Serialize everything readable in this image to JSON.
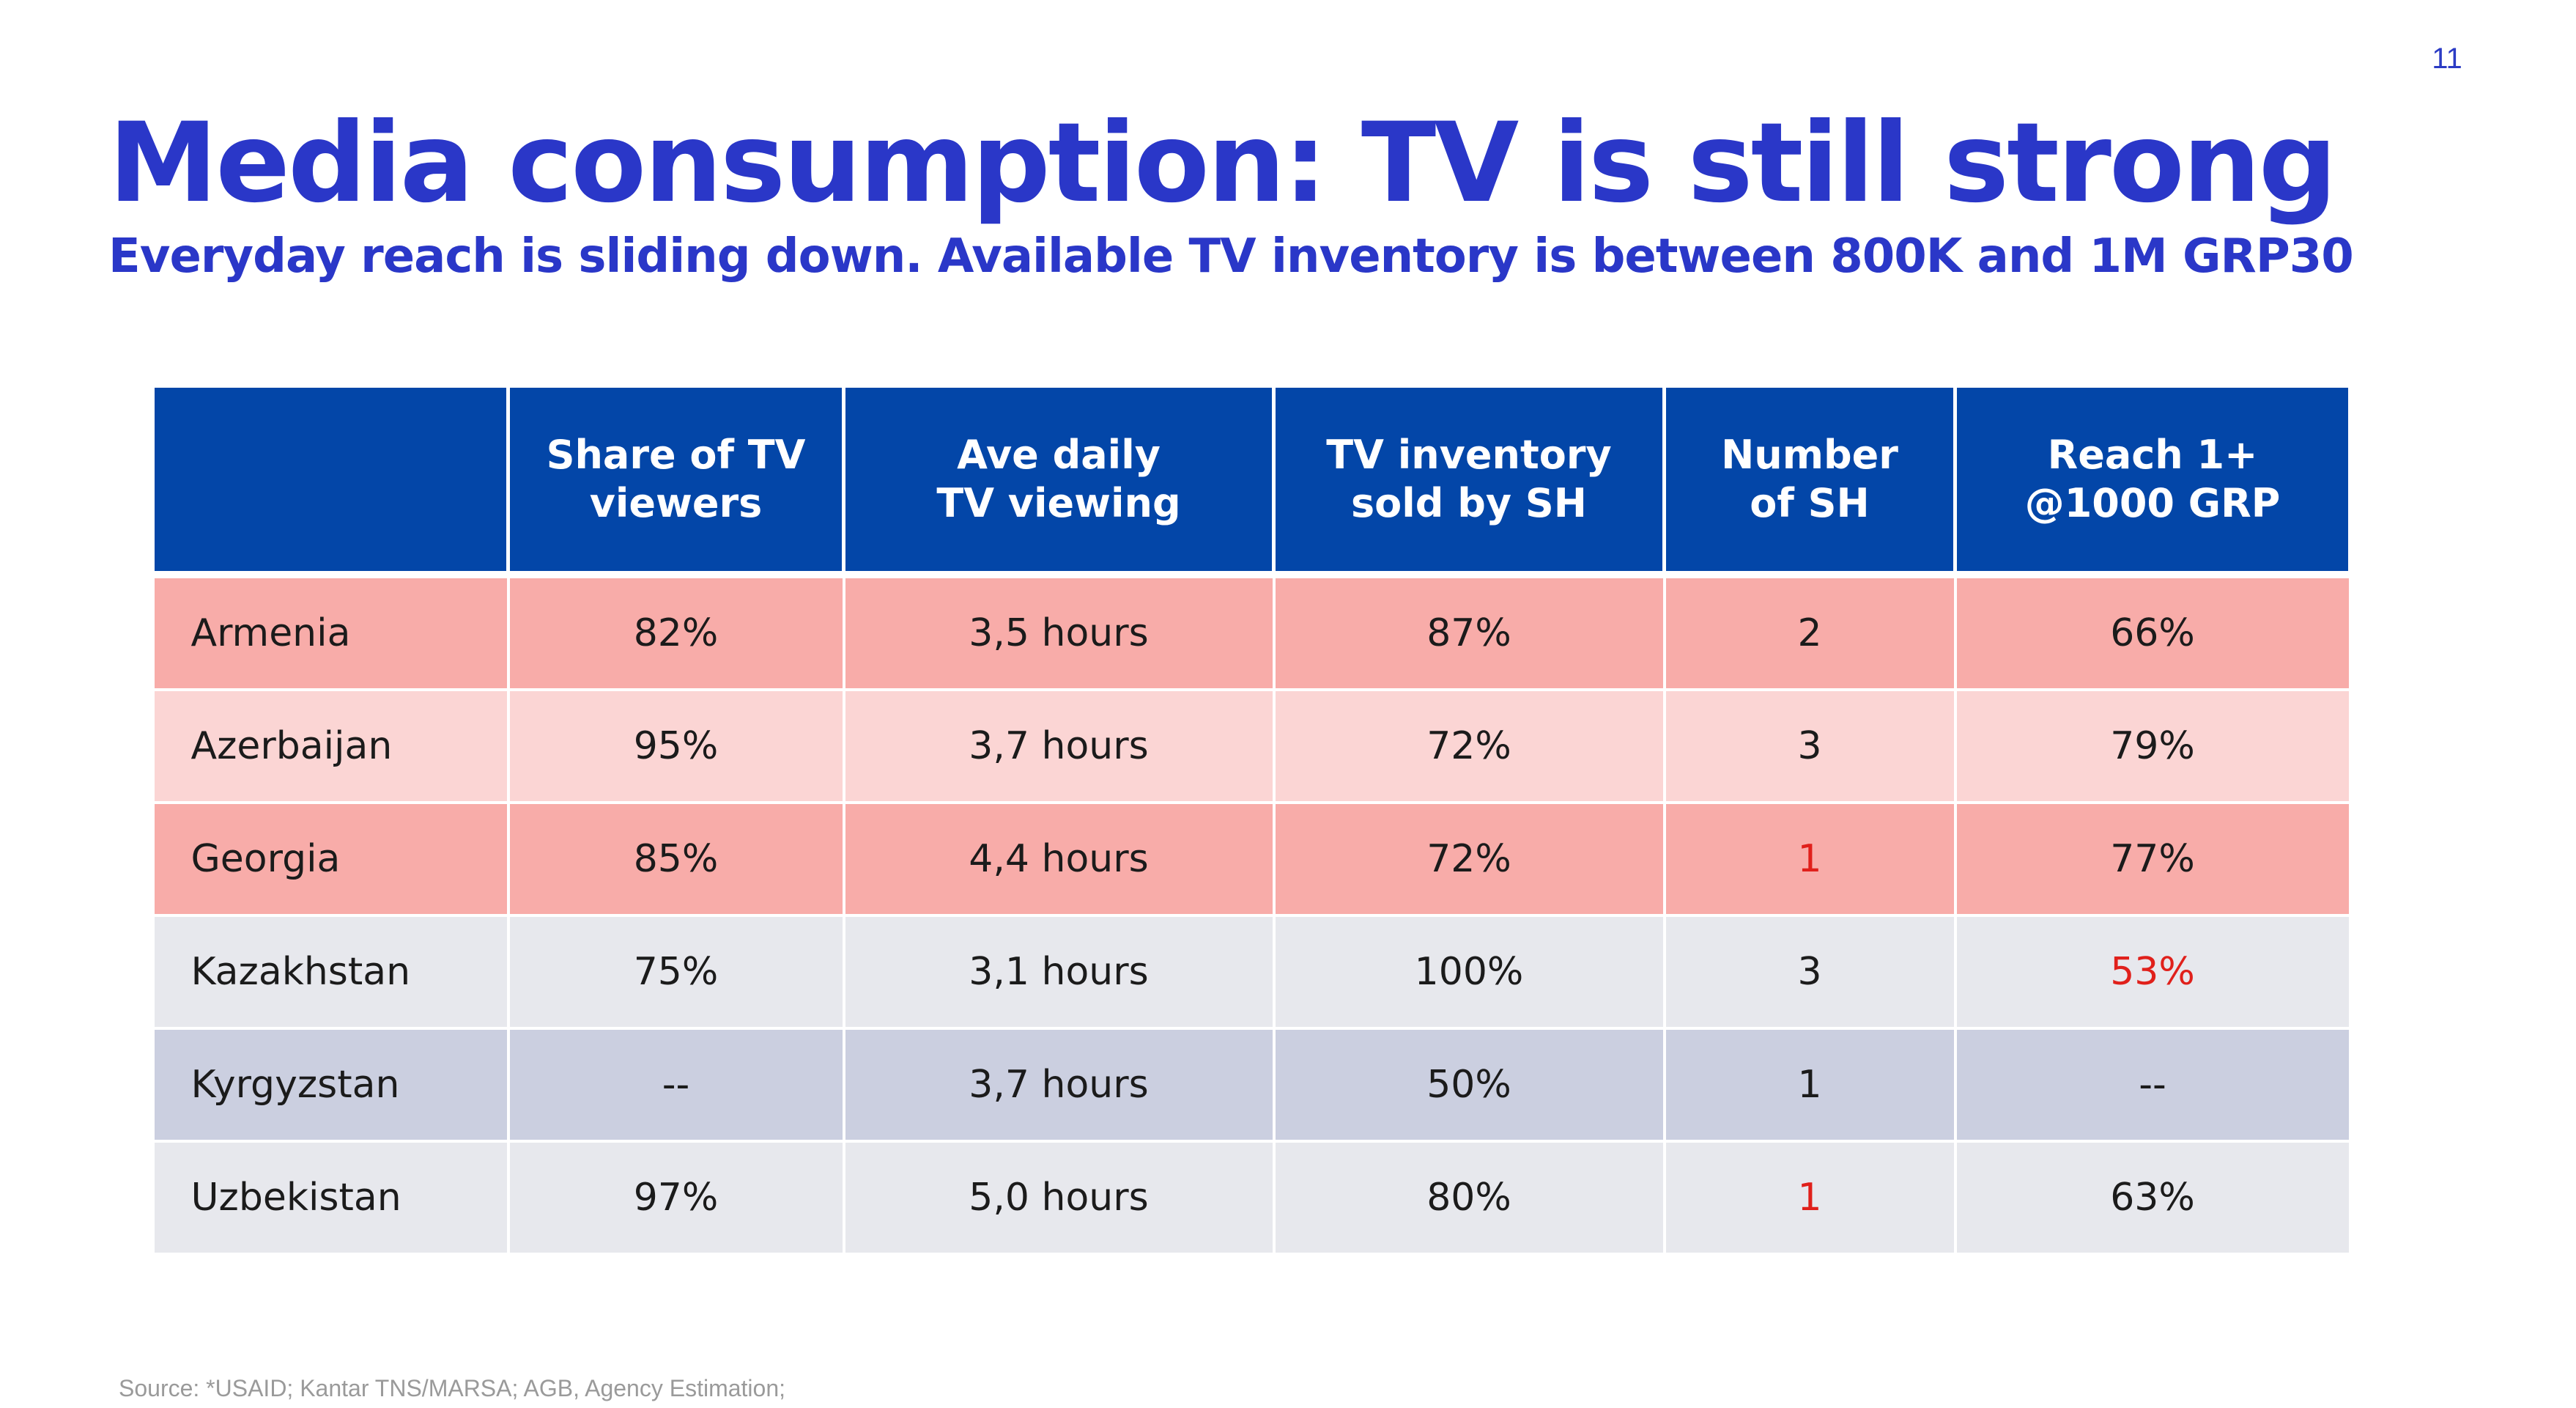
{
  "page": {
    "number": "11",
    "title": "Media consumption: TV is still strong",
    "subtitle": "Everyday reach is sliding down. Available TV inventory is between 800K and 1M GRP30"
  },
  "colors": {
    "header_bg": "#0346a8",
    "header_text": "#ffffff",
    "title_text": "#2a37c8",
    "row_pink_dark": "#f8aca9",
    "row_pink_light": "#fbd5d4",
    "row_grey_light": "#e7e8ed",
    "row_grey_blue": "#cbcfe0",
    "highlight_red": "#e0201b"
  },
  "table": {
    "headers": [
      "",
      "Share of TV\nviewers",
      "Ave daily\nTV viewing",
      "TV inventory\nsold by SH",
      "Number\nof SH",
      "Reach 1+\n@1000 GRP"
    ],
    "rows": [
      {
        "country": "Armenia",
        "share": "82%",
        "viewing": "3,5 hours",
        "inventory": "87%",
        "number_sh": "2",
        "reach": "66%",
        "bg": "#f8aca9",
        "highlight": []
      },
      {
        "country": "Azerbaijan",
        "share": "95%",
        "viewing": "3,7 hours",
        "inventory": "72%",
        "number_sh": "3",
        "reach": "79%",
        "bg": "#fbd5d4",
        "highlight": []
      },
      {
        "country": "Georgia",
        "share": "85%",
        "viewing": "4,4 hours",
        "inventory": "72%",
        "number_sh": "1",
        "reach": "77%",
        "bg": "#f8aca9",
        "highlight": [
          "number_sh"
        ]
      },
      {
        "country": "Kazakhstan",
        "share": "75%",
        "viewing": "3,1 hours",
        "inventory": "100%",
        "number_sh": "3",
        "reach": "53%",
        "bg": "#e7e8ed",
        "highlight": [
          "reach"
        ]
      },
      {
        "country": "Kyrgyzstan",
        "share": "--",
        "viewing": "3,7 hours",
        "inventory": "50%",
        "number_sh": "1",
        "reach": "--",
        "bg": "#cbcfe0",
        "highlight": []
      },
      {
        "country": "Uzbekistan",
        "share": "97%",
        "viewing": "5,0 hours",
        "inventory": "80%",
        "number_sh": "1",
        "reach": "63%",
        "bg": "#e7e8ed",
        "highlight": [
          "number_sh"
        ]
      }
    ]
  },
  "footer": {
    "source": "Source: *USAID; Kantar TNS/MARSA; AGB, Agency Estimation;"
  }
}
